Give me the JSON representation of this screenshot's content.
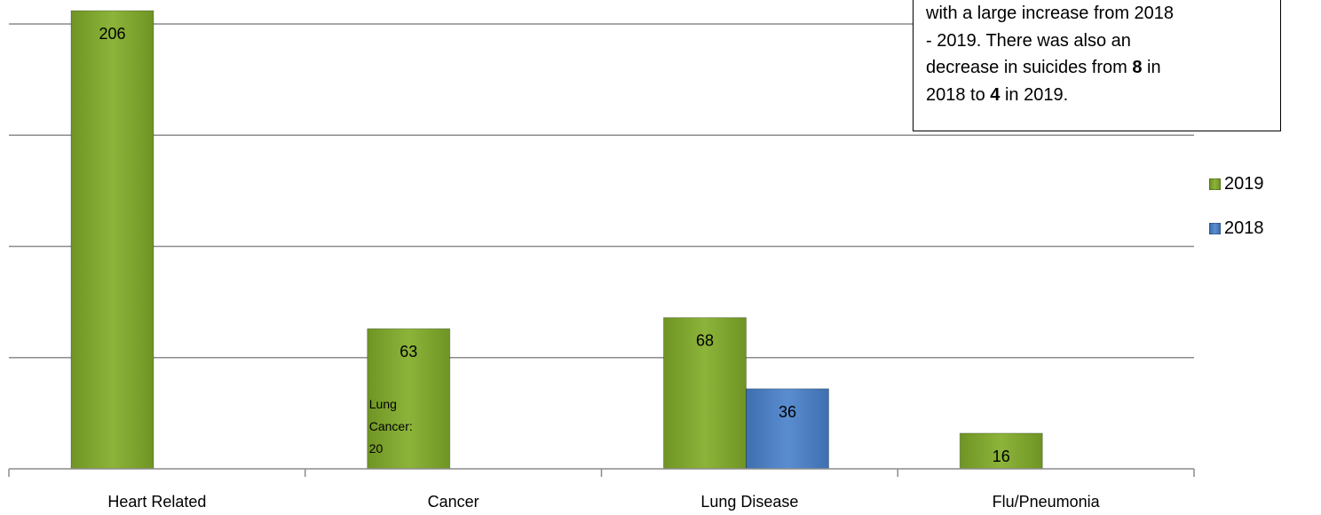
{
  "chart_data": {
    "type": "bar",
    "categories": [
      "Heart Related",
      "Cancer",
      "Lung Disease",
      "Flu/Pneumonia"
    ],
    "series": [
      {
        "name": "2019",
        "color": "#7fa62e",
        "values": [
          206,
          63,
          68,
          16
        ]
      },
      {
        "name": "2018",
        "color": "#4a7dc0",
        "values": [
          null,
          null,
          36,
          null
        ]
      }
    ],
    "annotations": [
      {
        "category": "Cancer",
        "lines": [
          "Lung",
          "Cancer:",
          "20"
        ]
      }
    ],
    "ylim": [
      0,
      210
    ],
    "grid": true,
    "legend": "right"
  },
  "note": {
    "line1": "with a large increase from 2018",
    "line2": "- 2019. There was also an",
    "line3_pre": "decrease in suicides from ",
    "line3_bold": "8",
    "line3_post": " in",
    "line4_pre": "2018 to ",
    "line4_bold": "4",
    "line4_post": " in 2019."
  },
  "legend": {
    "items": [
      {
        "label": "2019",
        "color": "#7fa62e"
      },
      {
        "label": "2018",
        "color": "#4a7dc0"
      }
    ]
  }
}
